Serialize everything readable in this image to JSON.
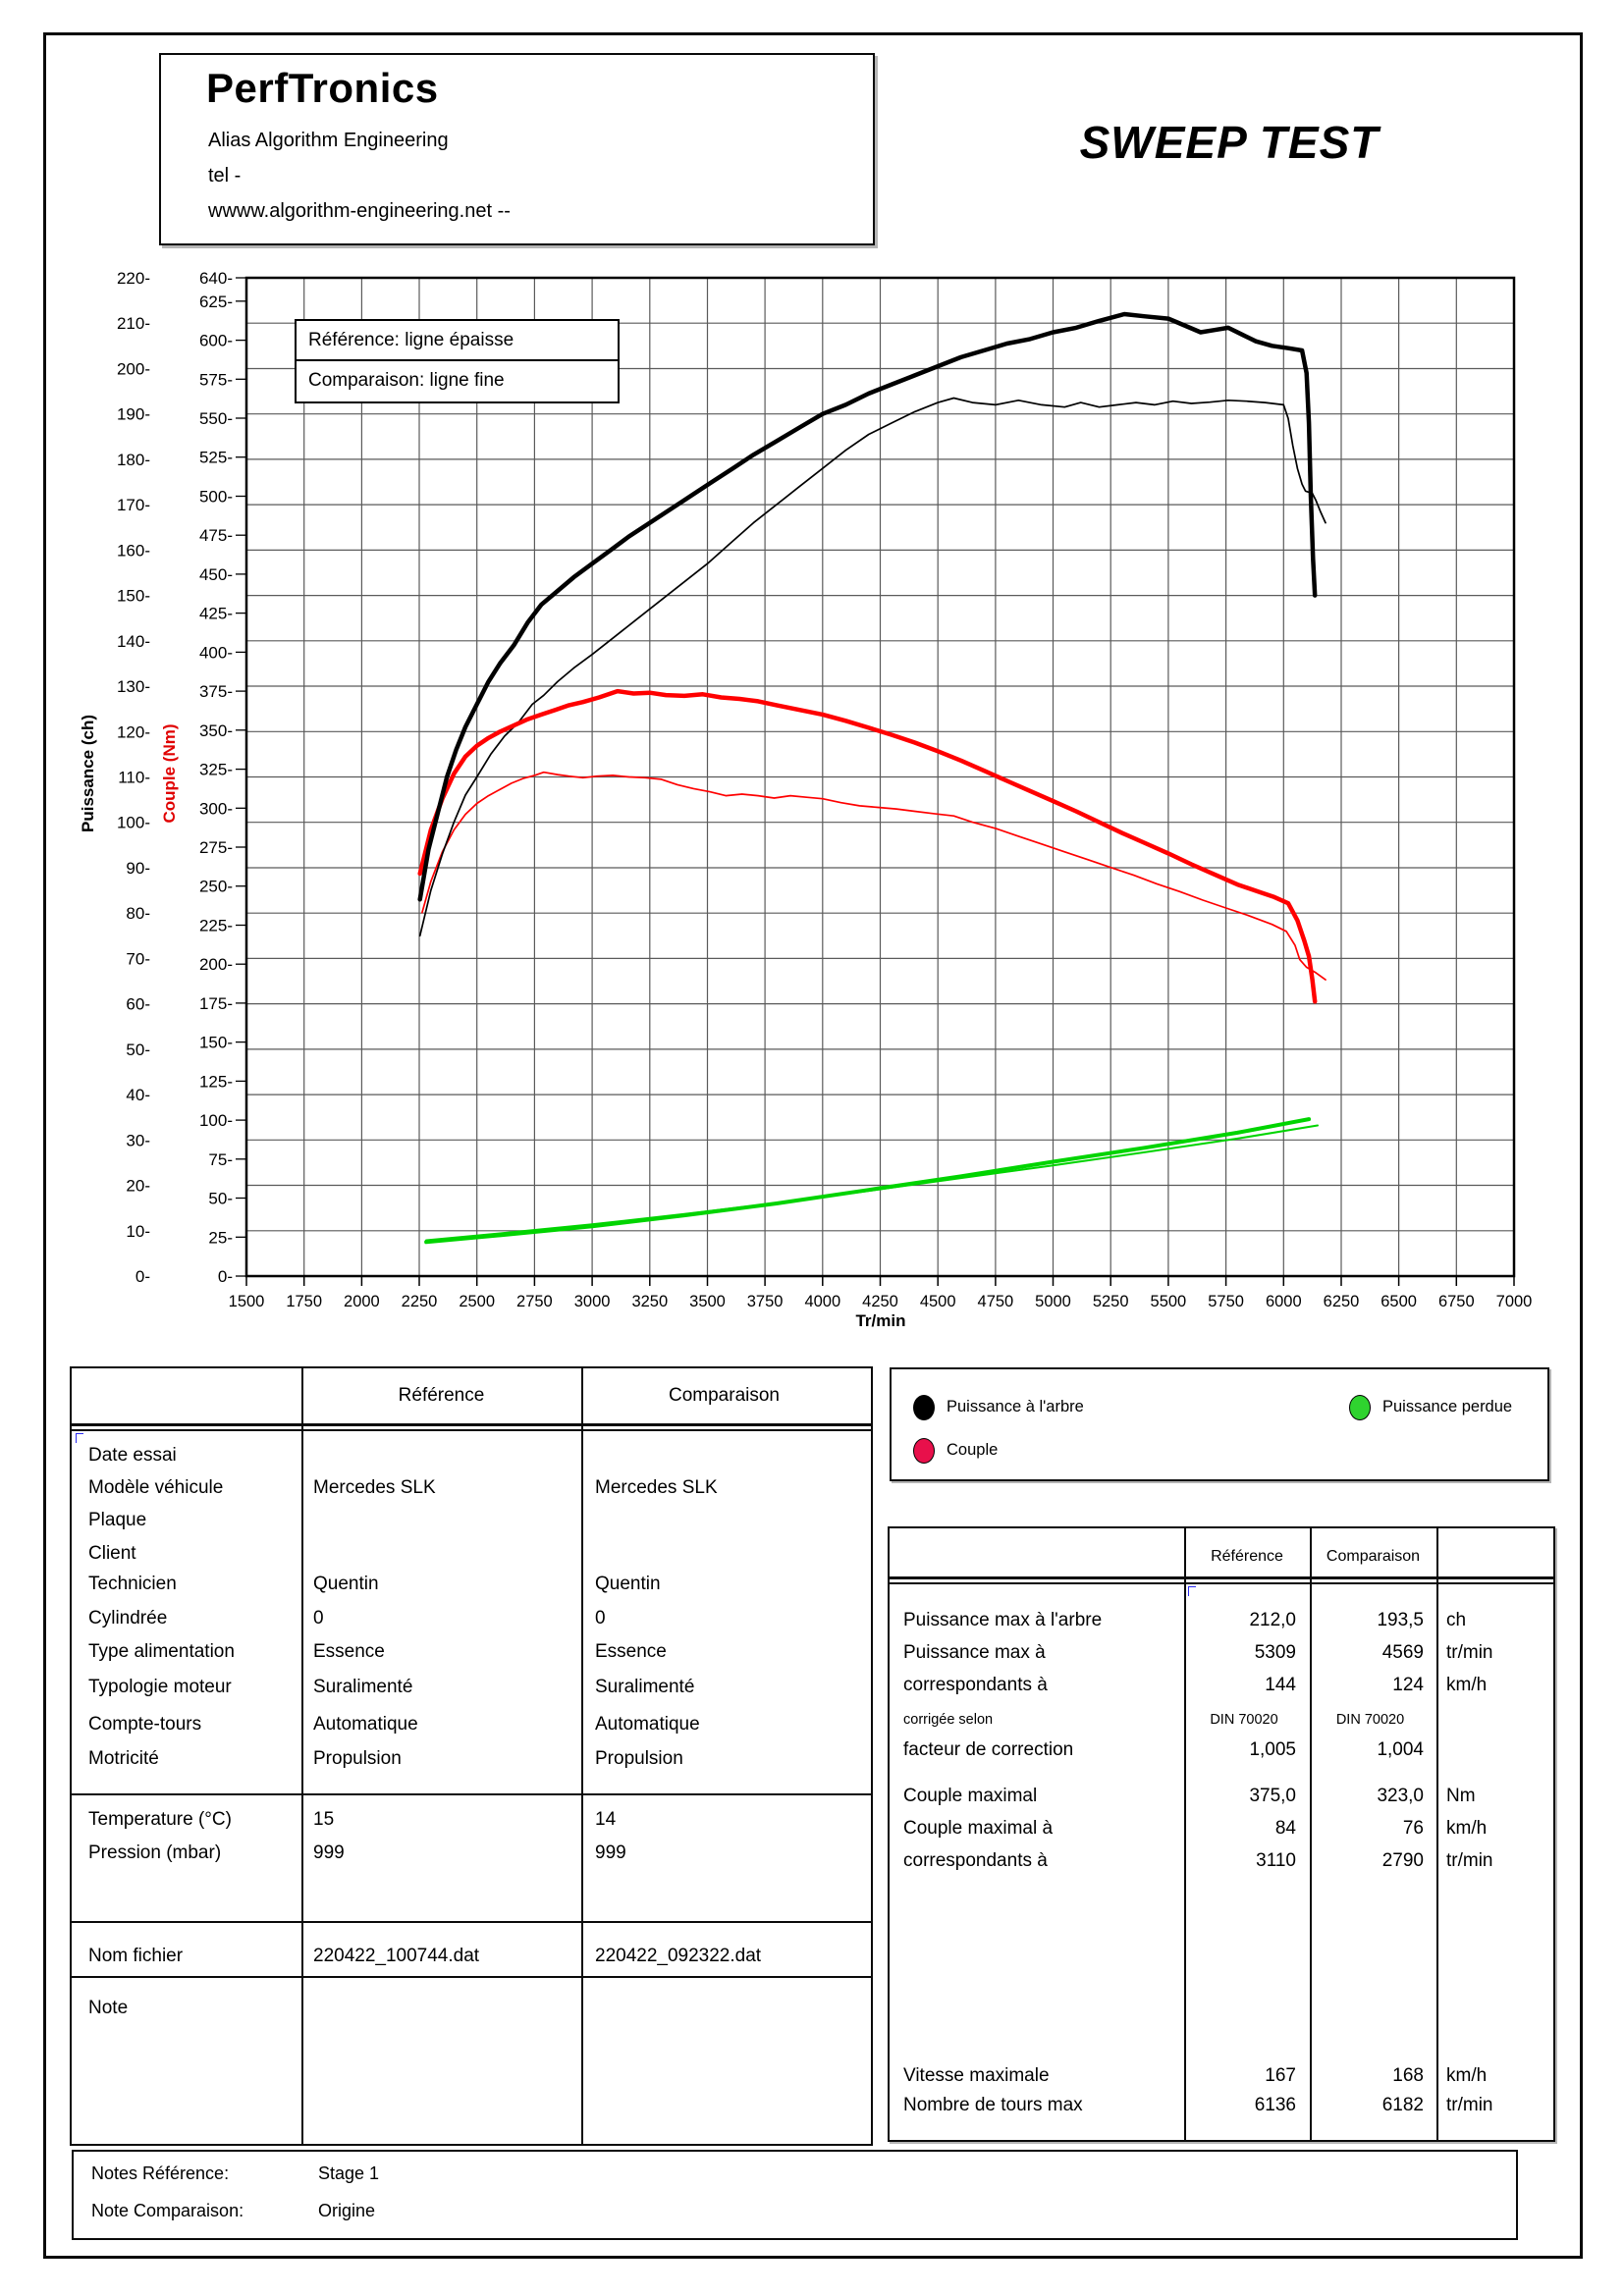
{
  "header": {
    "company": "PerfTronics",
    "subtitle": "Alias Algorithm Engineering",
    "tel": "tel -",
    "website": "wwww.algorithm-engineering.net  --",
    "title": "SWEEP TEST"
  },
  "chart": {
    "inline_legend": [
      "Référence: ligne épaisse",
      "Comparaison: ligne fine"
    ]
  },
  "chart_data": {
    "type": "line",
    "xlabel": "Tr/min",
    "y1label": "Puissance (ch)",
    "y2label": "Couple (Nm)",
    "x_range": [
      1500,
      7000
    ],
    "x_tick_step": 250,
    "y1_range": [
      0,
      220
    ],
    "y1_tick_step": 10,
    "y2_range": [
      0,
      640
    ],
    "y2_tick_step": 25,
    "y2_top_tick": 640,
    "grid": true,
    "series": [
      {
        "name": "puissance-perdue-comparaison",
        "axis": "y1",
        "color": "#00d400",
        "width": 2,
        "points": [
          [
            2280,
            7.9
          ],
          [
            2600,
            9.4
          ],
          [
            3000,
            11.4
          ],
          [
            3400,
            13.7
          ],
          [
            3800,
            16.1
          ],
          [
            4200,
            18.8
          ],
          [
            4600,
            21.6
          ],
          [
            5000,
            24.4
          ],
          [
            5400,
            27.3
          ],
          [
            5800,
            30.3
          ],
          [
            6148,
            33.2
          ]
        ]
      },
      {
        "name": "puissance-perdue-reference",
        "axis": "y1",
        "color": "#00d400",
        "width": 4,
        "points": [
          [
            2280,
            7.5
          ],
          [
            2600,
            9.0
          ],
          [
            3000,
            11.0
          ],
          [
            3400,
            13.4
          ],
          [
            3800,
            16.0
          ],
          [
            4200,
            19.0
          ],
          [
            4600,
            22.0
          ],
          [
            5000,
            25.2
          ],
          [
            5400,
            28.3
          ],
          [
            5800,
            31.6
          ],
          [
            6110,
            34.6
          ]
        ]
      },
      {
        "name": "couple-comparaison",
        "axis": "y2",
        "color": "#ff0000",
        "width": 1.7,
        "points": [
          [
            2262,
            233
          ],
          [
            2300,
            253
          ],
          [
            2350,
            272
          ],
          [
            2400,
            286
          ],
          [
            2450,
            296
          ],
          [
            2500,
            303
          ],
          [
            2550,
            308
          ],
          [
            2600,
            312
          ],
          [
            2650,
            316
          ],
          [
            2700,
            319
          ],
          [
            2750,
            321
          ],
          [
            2790,
            323
          ],
          [
            2850,
            321.5
          ],
          [
            2900,
            320.5
          ],
          [
            2960,
            319.5
          ],
          [
            3020,
            320.5
          ],
          [
            3090,
            321
          ],
          [
            3160,
            320
          ],
          [
            3230,
            319.5
          ],
          [
            3300,
            318.5
          ],
          [
            3370,
            315
          ],
          [
            3440,
            312.5
          ],
          [
            3510,
            310.5
          ],
          [
            3580,
            308
          ],
          [
            3650,
            309
          ],
          [
            3720,
            308
          ],
          [
            3790,
            306.5
          ],
          [
            3860,
            308
          ],
          [
            3930,
            307
          ],
          [
            4000,
            306
          ],
          [
            4080,
            303.5
          ],
          [
            4160,
            301.5
          ],
          [
            4240,
            300.5
          ],
          [
            4320,
            299.5
          ],
          [
            4400,
            298
          ],
          [
            4480,
            296.5
          ],
          [
            4569,
            295
          ],
          [
            4650,
            291
          ],
          [
            4750,
            287
          ],
          [
            4850,
            282
          ],
          [
            4950,
            277
          ],
          [
            5050,
            272
          ],
          [
            5150,
            267
          ],
          [
            5250,
            262
          ],
          [
            5350,
            257
          ],
          [
            5450,
            251.5
          ],
          [
            5550,
            246.5
          ],
          [
            5650,
            241
          ],
          [
            5750,
            236
          ],
          [
            5850,
            231
          ],
          [
            5950,
            225.5
          ],
          [
            6012,
            221
          ],
          [
            6050,
            212
          ],
          [
            6070,
            203
          ],
          [
            6100,
            198
          ],
          [
            6140,
            194.5
          ],
          [
            6182,
            190
          ]
        ]
      },
      {
        "name": "puissance-comparaison",
        "axis": "y1",
        "color": "#000000",
        "width": 1.7,
        "points": [
          [
            2253,
            75
          ],
          [
            2300,
            85
          ],
          [
            2350,
            93
          ],
          [
            2400,
            100
          ],
          [
            2450,
            106
          ],
          [
            2500,
            110
          ],
          [
            2560,
            115
          ],
          [
            2620,
            119
          ],
          [
            2680,
            122
          ],
          [
            2740,
            126
          ],
          [
            2790,
            128
          ],
          [
            2850,
            131
          ],
          [
            2920,
            134
          ],
          [
            3000,
            137
          ],
          [
            3100,
            141
          ],
          [
            3200,
            145
          ],
          [
            3300,
            149
          ],
          [
            3400,
            153
          ],
          [
            3500,
            157
          ],
          [
            3600,
            161.5
          ],
          [
            3700,
            166
          ],
          [
            3800,
            170
          ],
          [
            3900,
            174
          ],
          [
            4000,
            178
          ],
          [
            4100,
            182
          ],
          [
            4200,
            185.5
          ],
          [
            4300,
            188
          ],
          [
            4400,
            190.5
          ],
          [
            4500,
            192.5
          ],
          [
            4569,
            193.5
          ],
          [
            4650,
            192.5
          ],
          [
            4750,
            192
          ],
          [
            4850,
            193
          ],
          [
            4950,
            192
          ],
          [
            5050,
            191.5
          ],
          [
            5120,
            192.5
          ],
          [
            5200,
            191.5
          ],
          [
            5280,
            192
          ],
          [
            5360,
            192.5
          ],
          [
            5440,
            192
          ],
          [
            5520,
            192.8
          ],
          [
            5600,
            192.3
          ],
          [
            5680,
            192.6
          ],
          [
            5760,
            193
          ],
          [
            5840,
            192.8
          ],
          [
            5920,
            192.5
          ],
          [
            6000,
            192
          ],
          [
            6020,
            189
          ],
          [
            6040,
            183
          ],
          [
            6060,
            178
          ],
          [
            6080,
            174.5
          ],
          [
            6095,
            173
          ],
          [
            6125,
            172.5
          ],
          [
            6140,
            171
          ],
          [
            6160,
            168.5
          ],
          [
            6182,
            166
          ]
        ]
      },
      {
        "name": "couple-reference",
        "axis": "y2",
        "color": "#ff0000",
        "width": 4.5,
        "points": [
          [
            2253,
            258
          ],
          [
            2300,
            286
          ],
          [
            2350,
            306
          ],
          [
            2400,
            322
          ],
          [
            2450,
            333
          ],
          [
            2500,
            340
          ],
          [
            2550,
            345
          ],
          [
            2600,
            349
          ],
          [
            2660,
            353
          ],
          [
            2720,
            357
          ],
          [
            2780,
            360
          ],
          [
            2840,
            363
          ],
          [
            2900,
            366
          ],
          [
            2960,
            368
          ],
          [
            3030,
            371
          ],
          [
            3110,
            375
          ],
          [
            3180,
            373.5
          ],
          [
            3250,
            374
          ],
          [
            3320,
            372.5
          ],
          [
            3400,
            372
          ],
          [
            3480,
            373
          ],
          [
            3560,
            371
          ],
          [
            3640,
            370
          ],
          [
            3720,
            368.5
          ],
          [
            3800,
            366
          ],
          [
            3900,
            363
          ],
          [
            4000,
            360
          ],
          [
            4100,
            356
          ],
          [
            4200,
            351.5
          ],
          [
            4300,
            347
          ],
          [
            4400,
            342
          ],
          [
            4500,
            336.5
          ],
          [
            4600,
            330.5
          ],
          [
            4700,
            324
          ],
          [
            4800,
            317.5
          ],
          [
            4900,
            311
          ],
          [
            5000,
            304.5
          ],
          [
            5100,
            298
          ],
          [
            5200,
            291
          ],
          [
            5300,
            284
          ],
          [
            5400,
            277.5
          ],
          [
            5500,
            271
          ],
          [
            5600,
            264
          ],
          [
            5700,
            257.5
          ],
          [
            5800,
            251
          ],
          [
            5900,
            246
          ],
          [
            5960,
            243
          ],
          [
            6020,
            239
          ],
          [
            6060,
            228
          ],
          [
            6090,
            215
          ],
          [
            6110,
            205
          ],
          [
            6125,
            190
          ],
          [
            6136,
            176
          ]
        ]
      },
      {
        "name": "puissance-reference",
        "axis": "y1",
        "color": "#000000",
        "width": 4.5,
        "points": [
          [
            2253,
            83
          ],
          [
            2290,
            94
          ],
          [
            2330,
            102
          ],
          [
            2370,
            110
          ],
          [
            2410,
            116
          ],
          [
            2450,
            121
          ],
          [
            2500,
            126
          ],
          [
            2550,
            131
          ],
          [
            2600,
            135
          ],
          [
            2660,
            139
          ],
          [
            2720,
            144
          ],
          [
            2780,
            148
          ],
          [
            2850,
            151
          ],
          [
            2920,
            154
          ],
          [
            3000,
            157
          ],
          [
            3080,
            160
          ],
          [
            3160,
            163
          ],
          [
            3250,
            166
          ],
          [
            3340,
            169
          ],
          [
            3430,
            172
          ],
          [
            3520,
            175
          ],
          [
            3610,
            178
          ],
          [
            3700,
            181
          ],
          [
            3800,
            184
          ],
          [
            3900,
            187
          ],
          [
            4000,
            190
          ],
          [
            4100,
            192
          ],
          [
            4200,
            194.5
          ],
          [
            4300,
            196.5
          ],
          [
            4400,
            198.5
          ],
          [
            4500,
            200.5
          ],
          [
            4600,
            202.5
          ],
          [
            4700,
            204
          ],
          [
            4800,
            205.5
          ],
          [
            4900,
            206.5
          ],
          [
            5000,
            208
          ],
          [
            5100,
            209
          ],
          [
            5200,
            210.5
          ],
          [
            5309,
            212
          ],
          [
            5400,
            211.5
          ],
          [
            5500,
            211
          ],
          [
            5570,
            209.5
          ],
          [
            5640,
            208
          ],
          [
            5700,
            208.5
          ],
          [
            5760,
            209
          ],
          [
            5820,
            207.5
          ],
          [
            5880,
            206
          ],
          [
            5950,
            205
          ],
          [
            6020,
            204.5
          ],
          [
            6080,
            204
          ],
          [
            6100,
            199
          ],
          [
            6110,
            188
          ],
          [
            6118,
            172
          ],
          [
            6128,
            158
          ],
          [
            6136,
            150
          ]
        ]
      }
    ]
  },
  "series_legend": [
    {
      "label": "Puissance à l'arbre",
      "color": "#000000"
    },
    {
      "label": "Puissance perdue",
      "color": "#2fd32f"
    },
    {
      "label": "Couple",
      "color": "#e8104b"
    }
  ],
  "info_table": {
    "col_headers": [
      "Référence",
      "Comparaison"
    ],
    "rows": [
      {
        "label": "Date essai",
        "ref": "",
        "comp": ""
      },
      {
        "label": "Modèle véhicule",
        "ref": "Mercedes SLK",
        "comp": "Mercedes SLK"
      },
      {
        "label": "Plaque",
        "ref": "",
        "comp": ""
      },
      {
        "label": "Client",
        "ref": "",
        "comp": ""
      },
      {
        "label": "Technicien",
        "ref": "Quentin",
        "comp": "Quentin"
      },
      {
        "label": "Cylindrée",
        "ref": "0",
        "comp": "0"
      },
      {
        "label": "Type alimentation",
        "ref": "Essence",
        "comp": "Essence"
      },
      {
        "label": "Typologie moteur",
        "ref": "Suralimenté",
        "comp": "Suralimenté"
      },
      {
        "label": "Compte-tours",
        "ref": "Automatique",
        "comp": "Automatique"
      },
      {
        "label": "Motricité",
        "ref": "Propulsion",
        "comp": "Propulsion"
      },
      {
        "label": "Temperature (°C)",
        "ref": "15",
        "comp": "14"
      },
      {
        "label": "Pression (mbar)",
        "ref": "999",
        "comp": "999"
      },
      {
        "label": "Nom fichier",
        "ref": "220422_100744.dat",
        "comp": "220422_092322.dat"
      },
      {
        "label": "Note",
        "ref": "",
        "comp": ""
      }
    ]
  },
  "results_table": {
    "col_headers": [
      "Référence",
      "Comparaison"
    ],
    "rows": [
      {
        "label": "Puissance max à l'arbre",
        "ref": "212,0",
        "comp": "193,5",
        "unit": "ch"
      },
      {
        "label": "Puissance max à",
        "ref": "5309",
        "comp": "4569",
        "unit": "tr/min"
      },
      {
        "label": "correspondants à",
        "ref": "144",
        "comp": "124",
        "unit": "km/h"
      },
      {
        "label": "corrigée selon",
        "ref": "DIN 70020",
        "comp": "DIN 70020",
        "unit": "",
        "small": true
      },
      {
        "label": "facteur de correction",
        "ref": "1,005",
        "comp": "1,004",
        "unit": ""
      },
      {
        "label": "Couple maximal",
        "ref": "375,0",
        "comp": "323,0",
        "unit": "Nm"
      },
      {
        "label": "Couple maximal à",
        "ref": "84",
        "comp": "76",
        "unit": "km/h"
      },
      {
        "label": "correspondants à",
        "ref": "3110",
        "comp": "2790",
        "unit": "tr/min"
      },
      {
        "label": "Vitesse maximale",
        "ref": "167",
        "comp": "168",
        "unit": "km/h"
      },
      {
        "label": "Nombre de tours max",
        "ref": "6136",
        "comp": "6182",
        "unit": "tr/min"
      }
    ]
  },
  "notes": [
    {
      "label": "Notes Référence:",
      "value": "Stage 1"
    },
    {
      "label": "Note Comparaison:",
      "value": "Origine"
    }
  ]
}
